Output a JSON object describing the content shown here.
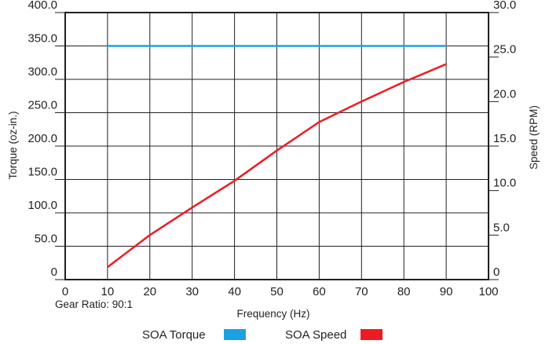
{
  "chart_data": {
    "type": "line",
    "xlabel": "Frequency (Hz)",
    "ylabel_left": "Torque (oz-in.)",
    "ylabel_right": "Speed (RPM)",
    "xlim": [
      0,
      100
    ],
    "ylim_left": [
      0,
      400
    ],
    "ylim_right": [
      0,
      30
    ],
    "x_ticks": [
      "0",
      "10",
      "20",
      "30",
      "40",
      "50",
      "60",
      "70",
      "80",
      "90",
      "100"
    ],
    "y_left_ticks": [
      "0",
      "50.0",
      "100.0",
      "150.0",
      "200.0",
      "250.0",
      "300.0",
      "350.0",
      "400.0"
    ],
    "y_right_ticks": [
      "0",
      "5.0",
      "10.0",
      "15.0",
      "20.0",
      "25.0",
      "30.0"
    ],
    "grid": true,
    "legend_position": "bottom",
    "series": [
      {
        "name": "SOA Torque",
        "axis": "left",
        "color": "#1ba1e2",
        "x": [
          10,
          90
        ],
        "y": [
          350,
          350
        ]
      },
      {
        "name": "SOA Speed",
        "axis": "right",
        "color": "#ed1c24",
        "x": [
          10,
          20,
          30,
          40,
          50,
          60,
          70,
          80,
          90
        ],
        "y": [
          1.4,
          5.0,
          8.1,
          11.1,
          14.5,
          17.7,
          20.0,
          22.2,
          24.2
        ]
      }
    ],
    "annotation": "Gear Ratio: 90:1"
  }
}
